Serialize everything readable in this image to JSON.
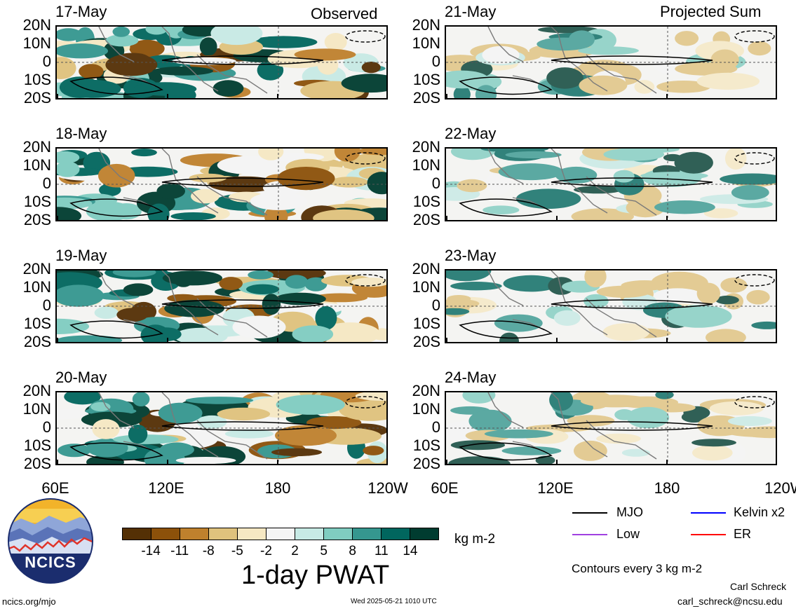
{
  "headers": {
    "left": "Observed",
    "right": "Projected Sum"
  },
  "lat_labels": [
    "20N",
    "10N",
    "0",
    "10S",
    "20S"
  ],
  "lon_labels": [
    "60E",
    "120E",
    "180",
    "120W"
  ],
  "panels": [
    {
      "date": "17-May"
    },
    {
      "date": "21-May"
    },
    {
      "date": "18-May"
    },
    {
      "date": "22-May"
    },
    {
      "date": "19-May"
    },
    {
      "date": "23-May"
    },
    {
      "date": "20-May"
    },
    {
      "date": "24-May"
    }
  ],
  "colorbar": {
    "colors": [
      "#543005",
      "#8c510a",
      "#bf812d",
      "#dfc27d",
      "#f6e8c3",
      "#f5f5f5",
      "#c7eae5",
      "#80cdc1",
      "#35978f",
      "#01665e",
      "#003c30"
    ],
    "labels": [
      "-14",
      "-11",
      "-8",
      "-5",
      "-2",
      "2",
      "5",
      "8",
      "11",
      "14"
    ],
    "units": "kg m-2",
    "title": "1-day PWAT"
  },
  "legend": {
    "items": [
      {
        "label": "MJO",
        "color": "#000000"
      },
      {
        "label": "Kelvin x2",
        "color": "#0000ff"
      },
      {
        "label": "Low",
        "color": "#a040e0"
      },
      {
        "label": "ER",
        "color": "#ff0000"
      }
    ],
    "contour_note": "Contours every 3 kg m-2"
  },
  "logo": {
    "text": "NCICS"
  },
  "footer": {
    "url": "ncics.org/mjo",
    "timestamp": "Wed 2025-05-21 1010 UTC",
    "author": "Carl Schreck",
    "email": "carl_schreck@ncsu.edu"
  }
}
